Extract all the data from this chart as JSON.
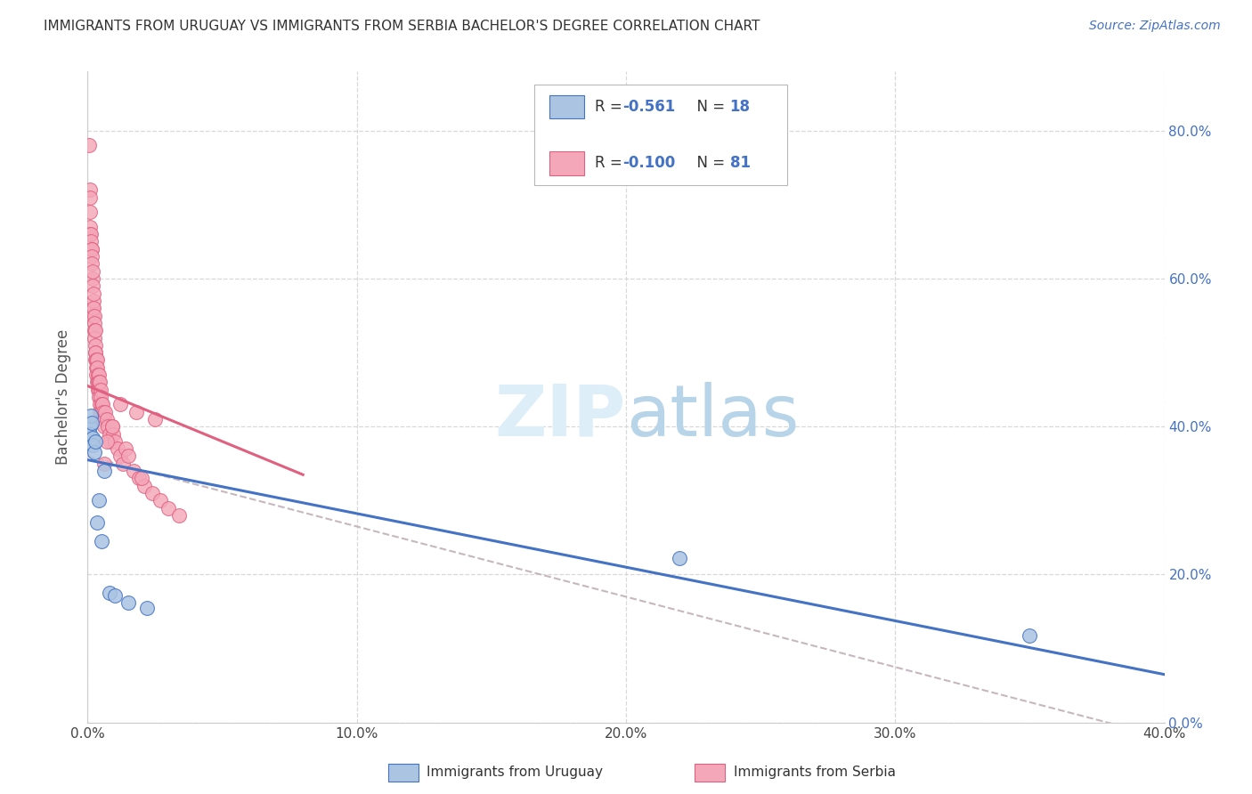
{
  "title": "IMMIGRANTS FROM URUGUAY VS IMMIGRANTS FROM SERBIA BACHELOR'S DEGREE CORRELATION CHART",
  "source": "Source: ZipAtlas.com",
  "ylabel": "Bachelor's Degree",
  "xlabel_legend1": "Immigrants from Uruguay",
  "xlabel_legend2": "Immigrants from Serbia",
  "r_uruguay": -0.561,
  "n_uruguay": 18,
  "r_serbia": -0.1,
  "n_serbia": 81,
  "color_uruguay": "#aac4e2",
  "color_uruguay_edge": "#4472c4",
  "color_serbia": "#f4a7b9",
  "color_serbia_edge": "#e06080",
  "color_uruguay_line": "#4472c4",
  "color_serbia_line": "#e06080",
  "color_dashed": "#c0b0b8",
  "xmin": 0.0,
  "xmax": 0.4,
  "ymin": 0.0,
  "ymax": 0.88,
  "yticks": [
    0.0,
    0.2,
    0.4,
    0.6,
    0.8
  ],
  "xticks": [
    0.0,
    0.1,
    0.2,
    0.3,
    0.4
  ],
  "background_color": "#ffffff",
  "grid_color": "#d8d8d8",
  "uruguay_x": [
    0.0008,
    0.001,
    0.0012,
    0.0015,
    0.0018,
    0.002,
    0.0025,
    0.003,
    0.0035,
    0.004,
    0.005,
    0.006,
    0.008,
    0.01,
    0.015,
    0.022,
    0.22,
    0.35
  ],
  "uruguay_y": [
    0.4,
    0.39,
    0.415,
    0.405,
    0.385,
    0.375,
    0.365,
    0.38,
    0.27,
    0.3,
    0.245,
    0.34,
    0.175,
    0.172,
    0.162,
    0.155,
    0.222,
    0.118
  ],
  "serbia_x": [
    0.0005,
    0.0007,
    0.0008,
    0.0009,
    0.001,
    0.001,
    0.0012,
    0.0013,
    0.0014,
    0.0015,
    0.0015,
    0.0016,
    0.0018,
    0.0018,
    0.0019,
    0.002,
    0.002,
    0.0021,
    0.0022,
    0.0023,
    0.0024,
    0.0025,
    0.0025,
    0.0026,
    0.0027,
    0.0028,
    0.0029,
    0.003,
    0.003,
    0.0031,
    0.0032,
    0.0033,
    0.0034,
    0.0035,
    0.0036,
    0.0037,
    0.0038,
    0.0039,
    0.004,
    0.0041,
    0.0042,
    0.0043,
    0.0044,
    0.0045,
    0.0046,
    0.0047,
    0.0048,
    0.005,
    0.0052,
    0.0054,
    0.0056,
    0.0058,
    0.006,
    0.0063,
    0.0066,
    0.007,
    0.0075,
    0.008,
    0.0085,
    0.009,
    0.0095,
    0.01,
    0.011,
    0.012,
    0.013,
    0.014,
    0.015,
    0.017,
    0.019,
    0.021,
    0.024,
    0.027,
    0.03,
    0.034,
    0.012,
    0.018,
    0.025,
    0.02,
    0.009,
    0.007,
    0.006
  ],
  "serbia_y": [
    0.78,
    0.72,
    0.69,
    0.71,
    0.67,
    0.66,
    0.66,
    0.65,
    0.64,
    0.64,
    0.63,
    0.62,
    0.56,
    0.6,
    0.59,
    0.55,
    0.61,
    0.57,
    0.58,
    0.56,
    0.55,
    0.54,
    0.53,
    0.52,
    0.51,
    0.5,
    0.49,
    0.53,
    0.5,
    0.49,
    0.48,
    0.47,
    0.46,
    0.49,
    0.48,
    0.47,
    0.46,
    0.45,
    0.47,
    0.46,
    0.45,
    0.44,
    0.43,
    0.42,
    0.46,
    0.45,
    0.44,
    0.43,
    0.42,
    0.41,
    0.43,
    0.42,
    0.41,
    0.4,
    0.42,
    0.41,
    0.4,
    0.39,
    0.38,
    0.4,
    0.39,
    0.38,
    0.37,
    0.36,
    0.35,
    0.37,
    0.36,
    0.34,
    0.33,
    0.32,
    0.31,
    0.3,
    0.29,
    0.28,
    0.43,
    0.42,
    0.41,
    0.33,
    0.4,
    0.38,
    0.35
  ]
}
